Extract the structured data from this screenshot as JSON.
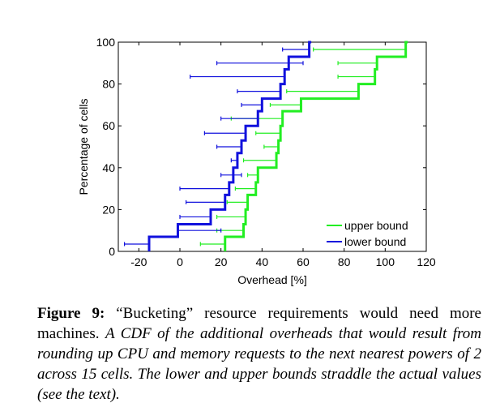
{
  "chart_data": {
    "type": "line",
    "xlabel": "Overhead [%]",
    "ylabel": "Percentage of cells",
    "xlim": [
      -30,
      120
    ],
    "ylim": [
      0,
      100
    ],
    "xticks": [
      -20,
      0,
      20,
      40,
      60,
      80,
      100,
      120
    ],
    "yticks": [
      0,
      20,
      40,
      60,
      80,
      100
    ],
    "legend_position": "bottom-right",
    "series": [
      {
        "name": "upper bound",
        "color": "#22ee22",
        "steps": [
          {
            "x": 22,
            "y": 0,
            "lo": 10,
            "hi": 22
          },
          {
            "x": 31,
            "y": 7,
            "lo": 18,
            "hi": 31
          },
          {
            "x": 32,
            "y": 13,
            "lo": 18,
            "hi": 32
          },
          {
            "x": 33,
            "y": 20,
            "lo": 23,
            "hi": 33
          },
          {
            "x": 37,
            "y": 27,
            "lo": 27,
            "hi": 37
          },
          {
            "x": 38,
            "y": 33,
            "lo": 33,
            "hi": 38
          },
          {
            "x": 47,
            "y": 40,
            "lo": 31,
            "hi": 47
          },
          {
            "x": 48,
            "y": 47,
            "lo": 41,
            "hi": 48
          },
          {
            "x": 49,
            "y": 53,
            "lo": 37,
            "hi": 49
          },
          {
            "x": 50,
            "y": 60,
            "lo": 25,
            "hi": 50
          },
          {
            "x": 59,
            "y": 67,
            "lo": 44,
            "hi": 59
          },
          {
            "x": 87,
            "y": 73,
            "lo": 52,
            "hi": 87
          },
          {
            "x": 95,
            "y": 80,
            "lo": 77,
            "hi": 95
          },
          {
            "x": 96,
            "y": 87,
            "lo": 77,
            "hi": 96
          },
          {
            "x": 110,
            "y": 93,
            "lo": 65,
            "hi": 110
          }
        ]
      },
      {
        "name": "lower bound",
        "color": "#1111dd",
        "steps": [
          {
            "x": -15,
            "y": 0,
            "lo": -27,
            "hi": -15
          },
          {
            "x": -1,
            "y": 7,
            "lo": -1,
            "hi": 20
          },
          {
            "x": 15,
            "y": 13,
            "lo": 0,
            "hi": 15
          },
          {
            "x": 22,
            "y": 20,
            "lo": 3,
            "hi": 22
          },
          {
            "x": 24,
            "y": 27,
            "lo": 0,
            "hi": 24
          },
          {
            "x": 26,
            "y": 33,
            "lo": 20,
            "hi": 30
          },
          {
            "x": 28,
            "y": 40,
            "lo": 25,
            "hi": 28
          },
          {
            "x": 30,
            "y": 47,
            "lo": 18,
            "hi": 30
          },
          {
            "x": 32,
            "y": 53,
            "lo": 12,
            "hi": 32
          },
          {
            "x": 38,
            "y": 60,
            "lo": 20,
            "hi": 38
          },
          {
            "x": 40,
            "y": 67,
            "lo": 30,
            "hi": 40
          },
          {
            "x": 49,
            "y": 73,
            "lo": 28,
            "hi": 49
          },
          {
            "x": 51,
            "y": 80,
            "lo": 5,
            "hi": 51
          },
          {
            "x": 53,
            "y": 87,
            "lo": 18,
            "hi": 60
          },
          {
            "x": 63,
            "y": 93,
            "lo": 50,
            "hi": 63
          }
        ]
      }
    ]
  },
  "caption": {
    "label": "Figure 9:",
    "text": " “Bucketing” resource requirements would need more machines. ",
    "italic": "A CDF of the additional overheads that would result from rounding up CPU and memory requests to the next nearest powers of 2 across 15 cells. The lower and upper bounds straddle the actual values (see the text)."
  }
}
